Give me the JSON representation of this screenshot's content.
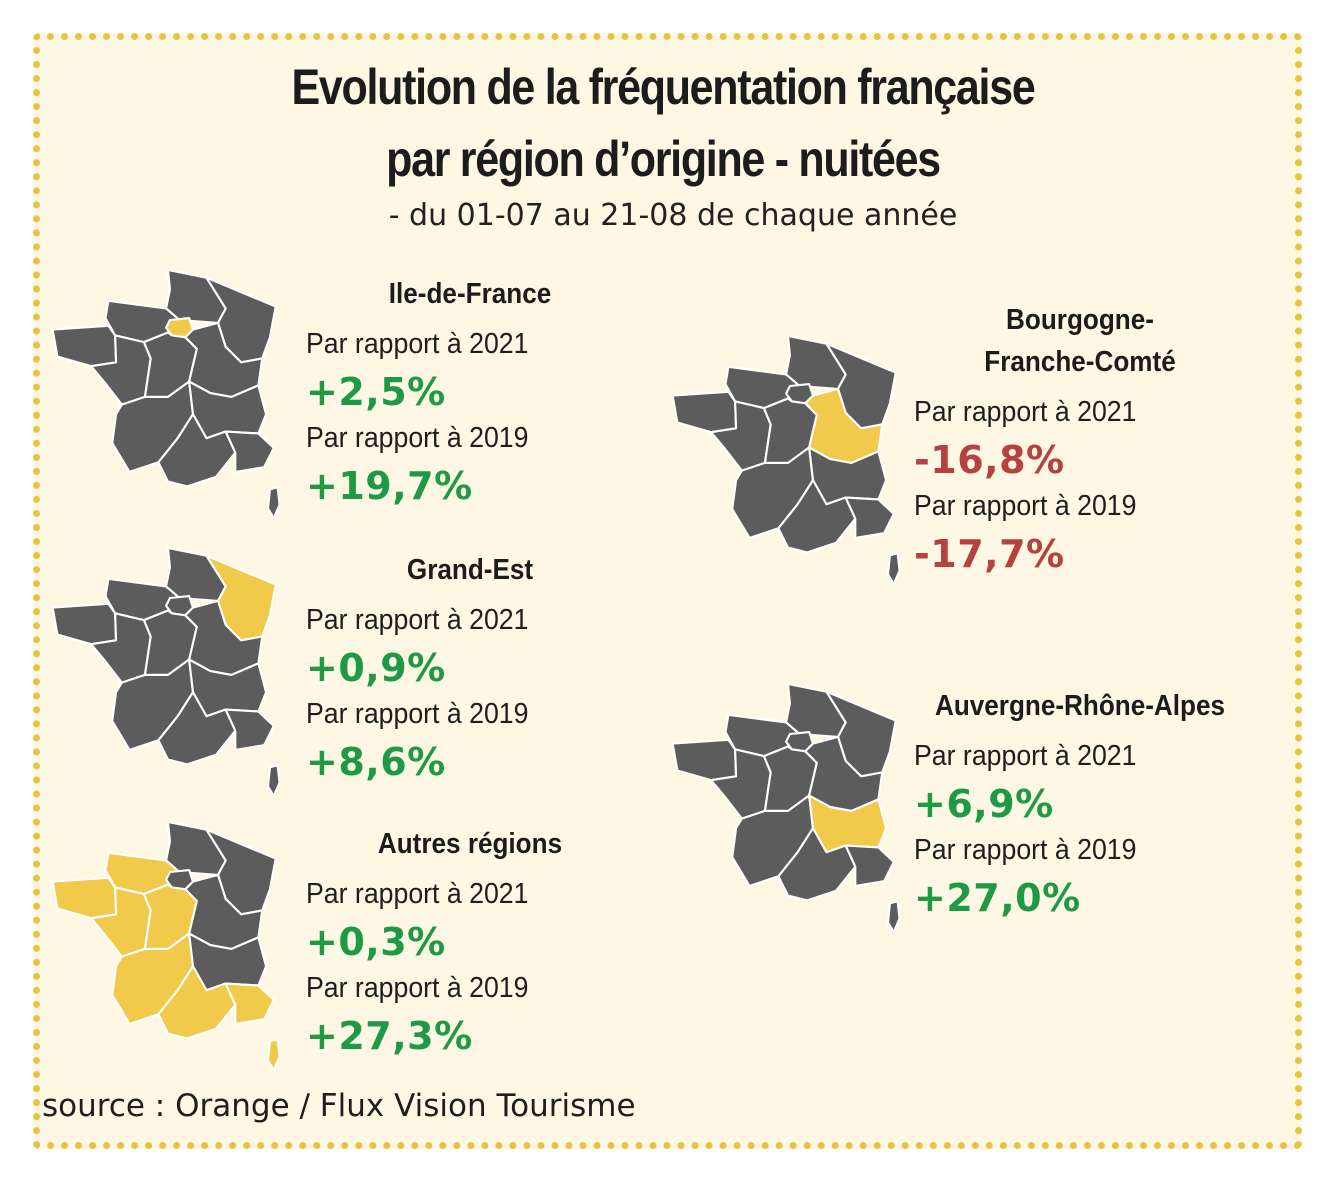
{
  "title_line1": "Evolution de la fréquentation française",
  "title_line2": "par région d’origine - nuitées",
  "subtitle": "- du 01-07 au 21-08 de chaque année",
  "source": "source : Orange / Flux Vision Tourisme",
  "colors": {
    "map_grey": "#5c5c5c",
    "highlight": "#f1c94b",
    "positive": "#1e9a47",
    "negative": "#b64141",
    "border_dots": "#e7c33f",
    "background": "#fdf7e4"
  },
  "panels": [
    {
      "region": "Ile-de-France",
      "highlighted_regions": [
        "ile-de-france"
      ],
      "label_2021": "Par rapport à 2021",
      "value_2021": "+2,5%",
      "label_2019": "Par rapport à 2019",
      "value_2019": "+19,7%"
    },
    {
      "region": "Grand-Est",
      "highlighted_regions": [
        "grand-est"
      ],
      "label_2021": "Par rapport à 2021",
      "value_2021": "+0,9%",
      "label_2019": "Par rapport à 2019",
      "value_2019": "+8,6%"
    },
    {
      "region": "Autres régions",
      "highlighted_regions": [
        "normandie",
        "bretagne",
        "pays-de-la-loire",
        "centre-val-de-loire",
        "nouvelle-aquitaine",
        "occitanie",
        "paca",
        "corse"
      ],
      "label_2021": "Par rapport à 2021",
      "value_2021": "+0,3%",
      "label_2019": "Par rapport à 2019",
      "value_2019": "+27,3%"
    },
    {
      "region_line1": "Bourgogne-",
      "region_line2": "Franche-Comté",
      "highlighted_regions": [
        "bourgogne-franche-comte"
      ],
      "label_2021": "Par rapport à 2021",
      "value_2021": "-16,8%",
      "label_2019": "Par rapport à 2019",
      "value_2019": "-17,7%"
    },
    {
      "region": "Auvergne-Rhône-Alpes",
      "highlighted_regions": [
        "auvergne-rhone-alpes"
      ],
      "label_2021": "Par rapport à 2021",
      "value_2021": "+6,9%",
      "label_2019": "Par rapport à 2019",
      "value_2019": "+27,0%"
    }
  ]
}
